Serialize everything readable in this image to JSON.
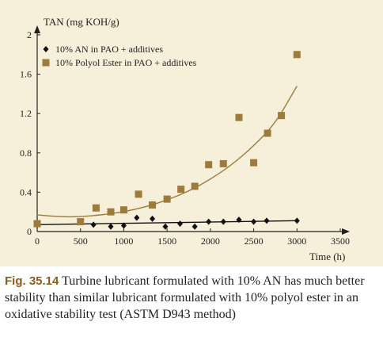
{
  "colors": {
    "background": "#f6efd9",
    "an": "#111111",
    "ester": "#9c7b3c",
    "ester_curve": "#9c7b3c",
    "figure_label": "#8a5a1f"
  },
  "chart_data": {
    "type": "scatter",
    "ylabel": "TAN (mg KOH/g)",
    "xlabel": "Time (h)",
    "xlim": [
      0,
      3500
    ],
    "ylim": [
      0,
      2
    ],
    "xticks": [
      "0",
      "500",
      "1000",
      "1500",
      "2000",
      "2500",
      "3000",
      "3500"
    ],
    "yticks": [
      "0",
      "0.4",
      "0.8",
      "1.2",
      "1.6",
      "2"
    ],
    "grid": false,
    "legend_position": "top-left",
    "series": [
      {
        "name": "10% AN in PAO + additives",
        "marker": "diamond",
        "points": [
          [
            0,
            0.07
          ],
          [
            650,
            0.07
          ],
          [
            850,
            0.05
          ],
          [
            1000,
            0.06
          ],
          [
            1150,
            0.14
          ],
          [
            1330,
            0.13
          ],
          [
            1480,
            0.05
          ],
          [
            1650,
            0.08
          ],
          [
            1820,
            0.05
          ],
          [
            1980,
            0.1
          ],
          [
            2150,
            0.1
          ],
          [
            2330,
            0.12
          ],
          [
            2500,
            0.1
          ],
          [
            2650,
            0.11
          ],
          [
            3000,
            0.11
          ]
        ],
        "trend": [
          [
            0,
            0.07
          ],
          [
            3000,
            0.11
          ]
        ]
      },
      {
        "name": "10% Polyol Ester in PAO + additives",
        "marker": "square",
        "points": [
          [
            0,
            0.08
          ],
          [
            500,
            0.1
          ],
          [
            680,
            0.24
          ],
          [
            850,
            0.2
          ],
          [
            1000,
            0.22
          ],
          [
            1170,
            0.38
          ],
          [
            1330,
            0.27
          ],
          [
            1500,
            0.33
          ],
          [
            1660,
            0.43
          ],
          [
            1820,
            0.46
          ],
          [
            1980,
            0.68
          ],
          [
            2150,
            0.69
          ],
          [
            2330,
            1.16
          ],
          [
            2500,
            0.7
          ],
          [
            2660,
            1.0
          ],
          [
            2820,
            1.18
          ],
          [
            3000,
            1.8
          ]
        ],
        "trend": [
          [
            0,
            0.17
          ],
          [
            250,
            0.15
          ],
          [
            500,
            0.15
          ],
          [
            750,
            0.17
          ],
          [
            1000,
            0.2
          ],
          [
            1250,
            0.25
          ],
          [
            1500,
            0.32
          ],
          [
            1750,
            0.41
          ],
          [
            2000,
            0.53
          ],
          [
            2250,
            0.68
          ],
          [
            2500,
            0.87
          ],
          [
            2750,
            1.1
          ],
          [
            3000,
            1.48
          ]
        ]
      }
    ]
  },
  "caption": {
    "label": "Fig. 35.14",
    "text": "Turbine lubricant formulated with 10% AN has much better stability than similar lubricant formulated with 10% polyol ester in an oxidative stability test (ASTM D943 method)"
  }
}
